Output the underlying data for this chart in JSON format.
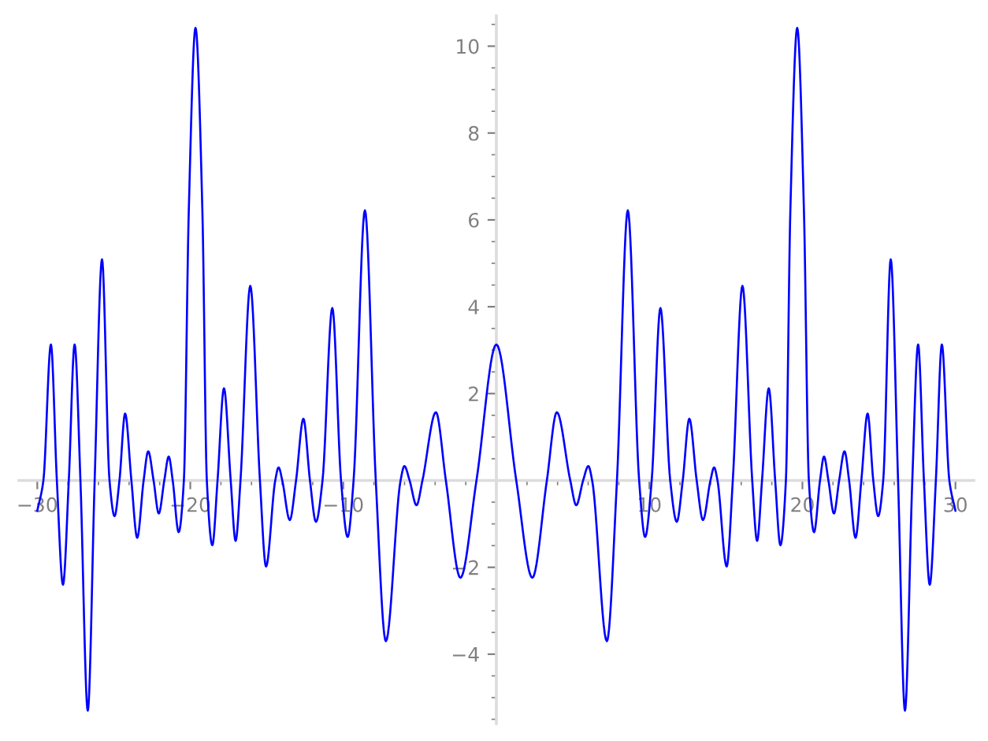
{
  "chart_data": {
    "type": "line",
    "color": "#0000ff",
    "x": [
      -30,
      -29.6,
      -29.11,
      -28.72,
      -28.32,
      -27.94,
      -27.56,
      -27.18,
      -26.7,
      -26.25,
      -25.77,
      -25.28,
      -24.95,
      -24.63,
      -24.26,
      -23.85,
      -23.47,
      -23.05,
      -22.75,
      -22.4,
      -22.06,
      -21.7,
      -21.41,
      -21.15,
      -20.76,
      -20.42,
      -20.1,
      -19.66,
      -19.21,
      -18.92,
      -18.56,
      -18.22,
      -17.8,
      -17.36,
      -17.04,
      -16.72,
      -16.08,
      -15.45,
      -15.05,
      -14.45,
      -14.23,
      -13.99,
      -13.5,
      -13.09,
      -12.61,
      -12.18,
      -11.79,
      -11.36,
      -10.72,
      -10.15,
      -9.72,
      -9.33,
      -8.59,
      -7.88,
      -7.22,
      -6.26,
      -6.01,
      -5.67,
      -5.22,
      -4.83,
      -3.95,
      -3.3,
      -2.35,
      -1.3,
      0,
      1.3,
      2.35,
      3.3,
      3.95,
      4.83,
      5.22,
      5.67,
      6.01,
      6.26,
      7.22,
      7.88,
      8.59,
      9.33,
      9.72,
      10.15,
      10.72,
      11.36,
      11.79,
      12.18,
      12.61,
      13.09,
      13.5,
      13.99,
      14.23,
      14.45,
      15.05,
      15.45,
      16.08,
      16.72,
      17.04,
      17.36,
      17.8,
      18.22,
      18.56,
      18.92,
      19.21,
      19.66,
      20.1,
      20.42,
      20.76,
      21.15,
      21.41,
      21.7,
      22.06,
      22.4,
      22.75,
      23.05,
      23.47,
      23.85,
      24.26,
      24.63,
      24.95,
      25.28,
      25.77,
      26.25,
      26.7,
      27.18,
      27.56,
      27.94,
      28.32,
      28.72,
      29.11,
      29.6,
      30
    ],
    "values": [
      -0.7,
      0,
      3.13,
      0,
      -2.4,
      0,
      3.13,
      0,
      -5.3,
      0,
      5.09,
      0,
      -0.82,
      0,
      1.54,
      0,
      -1.32,
      0,
      0.67,
      0,
      -0.76,
      0,
      0.55,
      0,
      -1.19,
      0,
      6.2,
      10.42,
      6.2,
      0,
      -1.49,
      0,
      2.12,
      0,
      -1.39,
      0,
      4.48,
      0,
      -1.98,
      0,
      0.3,
      0,
      -0.91,
      0,
      1.42,
      0,
      -0.95,
      0,
      3.97,
      0,
      -1.3,
      0,
      6.22,
      0,
      -3.7,
      0,
      0.33,
      0,
      -0.57,
      0,
      1.57,
      0,
      -2.24,
      0,
      3.13,
      0,
      -2.24,
      0,
      1.57,
      0,
      -0.57,
      0,
      0.33,
      0,
      -3.7,
      0,
      6.22,
      0,
      -1.3,
      0,
      3.97,
      0,
      -0.95,
      0,
      1.42,
      0,
      -0.91,
      0,
      0.3,
      0,
      -1.98,
      0,
      4.48,
      0,
      -1.39,
      0,
      2.12,
      0,
      -1.49,
      0,
      6.2,
      10.42,
      6.2,
      0,
      -1.19,
      0,
      0.55,
      0,
      -0.76,
      0,
      0.67,
      0,
      -1.32,
      0,
      1.54,
      0,
      -0.82,
      0,
      5.09,
      0,
      -5.3,
      0,
      3.13,
      0,
      -2.4,
      0,
      3.13,
      0,
      -0.7
    ],
    "xlim": [
      -31.2,
      31.2
    ],
    "ylim": [
      -5.6,
      10.7
    ],
    "xticks": [
      -30,
      {
        "value": -28,
        "label": null
      },
      {
        "value": -26,
        "label": null
      },
      {
        "value": -24,
        "label": null
      },
      {
        "value": -22,
        "label": null
      },
      -20,
      {
        "value": -18,
        "label": null
      },
      {
        "value": -16,
        "label": null
      },
      {
        "value": -14,
        "label": null
      },
      {
        "value": -12,
        "label": null
      },
      -10,
      {
        "value": -8,
        "label": null
      },
      {
        "value": -6,
        "label": null
      },
      {
        "value": -4,
        "label": null
      },
      {
        "value": -2,
        "label": null
      },
      {
        "value": 2,
        "label": null
      },
      {
        "value": 4,
        "label": null
      },
      {
        "value": 6,
        "label": null
      },
      {
        "value": 8,
        "label": null
      },
      10,
      {
        "value": 12,
        "label": null
      },
      {
        "value": 14,
        "label": null
      },
      {
        "value": 16,
        "label": null
      },
      {
        "value": 18,
        "label": null
      },
      20,
      {
        "value": 22,
        "label": null
      },
      {
        "value": 24,
        "label": null
      },
      {
        "value": 26,
        "label": null
      },
      {
        "value": 28,
        "label": null
      },
      30
    ],
    "yticks": [
      {
        "value": -5.5,
        "label": null
      },
      {
        "value": -5,
        "label": null
      },
      {
        "value": -4.5,
        "label": null
      },
      -4,
      {
        "value": -3.5,
        "label": null
      },
      {
        "value": -3,
        "label": null
      },
      {
        "value": -2.5,
        "label": null
      },
      -2,
      {
        "value": -1.5,
        "label": null
      },
      {
        "value": -1,
        "label": null
      },
      {
        "value": -0.5,
        "label": null
      },
      {
        "value": 0.5,
        "label": null
      },
      {
        "value": 1,
        "label": null
      },
      {
        "value": 1.5,
        "label": null
      },
      2,
      {
        "value": 2.5,
        "label": null
      },
      {
        "value": 3,
        "label": null
      },
      {
        "value": 3.5,
        "label": null
      },
      4,
      {
        "value": 4.5,
        "label": null
      },
      {
        "value": 5,
        "label": null
      },
      {
        "value": 5.5,
        "label": null
      },
      6,
      {
        "value": 6.5,
        "label": null
      },
      {
        "value": 7,
        "label": null
      },
      {
        "value": 7.5,
        "label": null
      },
      8,
      {
        "value": 8.5,
        "label": null
      },
      {
        "value": 9,
        "label": null
      },
      {
        "value": 9.5,
        "label": null
      },
      10,
      {
        "value": 10.5,
        "label": null
      }
    ]
  }
}
